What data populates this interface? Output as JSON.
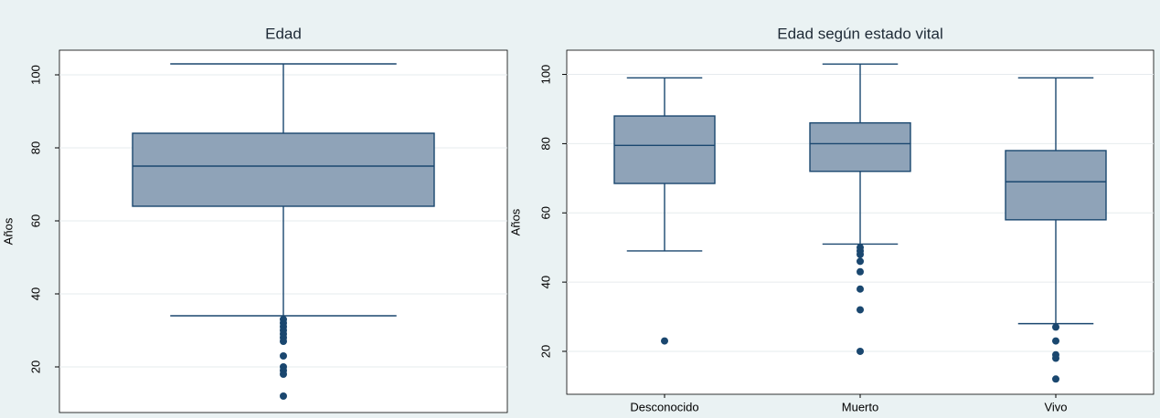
{
  "chart_data": [
    {
      "type": "box",
      "title": "Edad",
      "y_label": "Años",
      "ylim": [
        7.5,
        106.75
      ],
      "yticks": [
        20,
        40,
        60,
        80,
        100
      ],
      "grid": true,
      "color": "#8fa3b8",
      "line_color": "#1a476f",
      "boxes": [
        {
          "whislo": 34,
          "q1": 64,
          "med": 75,
          "q3": 84,
          "whishi": 103,
          "fliers": [
            33,
            32,
            31,
            30,
            29,
            28,
            27,
            23,
            20,
            19,
            18,
            12
          ]
        }
      ]
    },
    {
      "type": "box",
      "title": "Edad según estado vital",
      "y_label": "Años",
      "ylim": [
        7.6,
        107
      ],
      "yticks": [
        20,
        40,
        60,
        80,
        100
      ],
      "grid": true,
      "color": "#8fa3b8",
      "line_color": "#1a476f",
      "categories": [
        "Desconocido",
        "Muerto",
        "Vivo"
      ],
      "boxes": [
        {
          "whislo": 49,
          "q1": 68.5,
          "med": 79.5,
          "q3": 88,
          "whishi": 99,
          "fliers": [
            23
          ]
        },
        {
          "whislo": 51,
          "q1": 72,
          "med": 80,
          "q3": 86,
          "whishi": 103,
          "fliers": [
            50,
            49,
            48,
            46,
            43,
            38,
            32,
            20
          ]
        },
        {
          "whislo": 28,
          "q1": 58,
          "med": 69,
          "q3": 78,
          "whishi": 99,
          "fliers": [
            27,
            23,
            19,
            18,
            12
          ]
        }
      ]
    }
  ]
}
